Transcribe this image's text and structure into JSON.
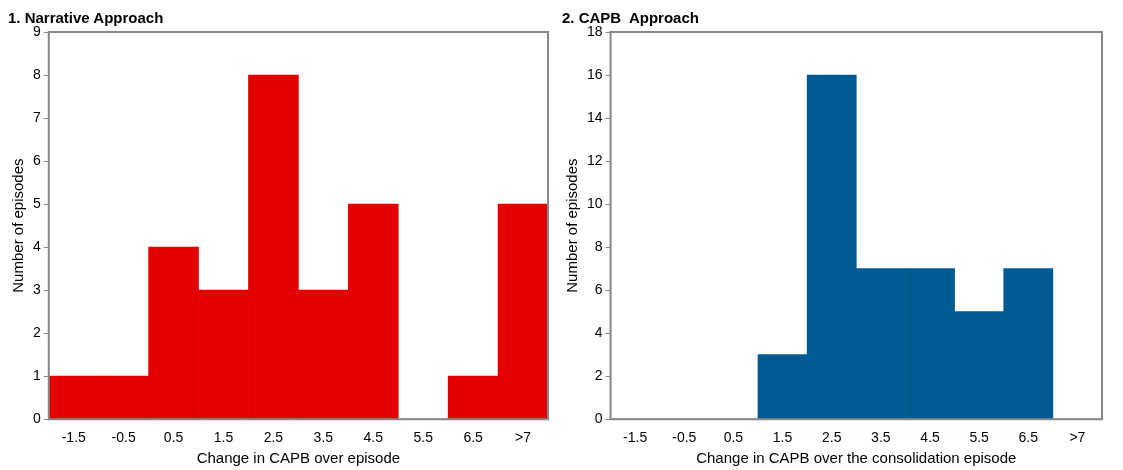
{
  "chart_data": [
    {
      "type": "bar",
      "title": "1. Narrative Approach",
      "xlabel": "Change in CAPB over episode",
      "ylabel": "Number of episodes",
      "categories": [
        "-1.5",
        "-0.5",
        "0.5",
        "1.5",
        "2.5",
        "3.5",
        "4.5",
        "5.5",
        "6.5",
        ">7"
      ],
      "values": [
        1,
        1,
        4,
        3,
        8,
        3,
        5,
        0,
        1,
        5
      ],
      "color": "#e50000",
      "ylim": [
        0,
        9
      ],
      "yticks": [
        0,
        1,
        2,
        3,
        4,
        5,
        6,
        7,
        8,
        9
      ],
      "grid": false,
      "legend": false
    },
    {
      "type": "bar",
      "title": "2. CAPB  Approach",
      "xlabel": "Change in CAPB over the consolidation episode",
      "ylabel": "Number of episodes",
      "categories": [
        "-1.5",
        "-0.5",
        "0.5",
        "1.5",
        "2.5",
        "3.5",
        "4.5",
        "5.5",
        "6.5",
        ">7"
      ],
      "values": [
        0,
        0,
        0,
        3,
        16,
        7,
        7,
        5,
        7,
        0
      ],
      "color": "#005a92",
      "ylim": [
        0,
        18
      ],
      "yticks": [
        0,
        2,
        4,
        6,
        8,
        10,
        12,
        14,
        16,
        18
      ],
      "grid": false,
      "legend": false
    }
  ]
}
